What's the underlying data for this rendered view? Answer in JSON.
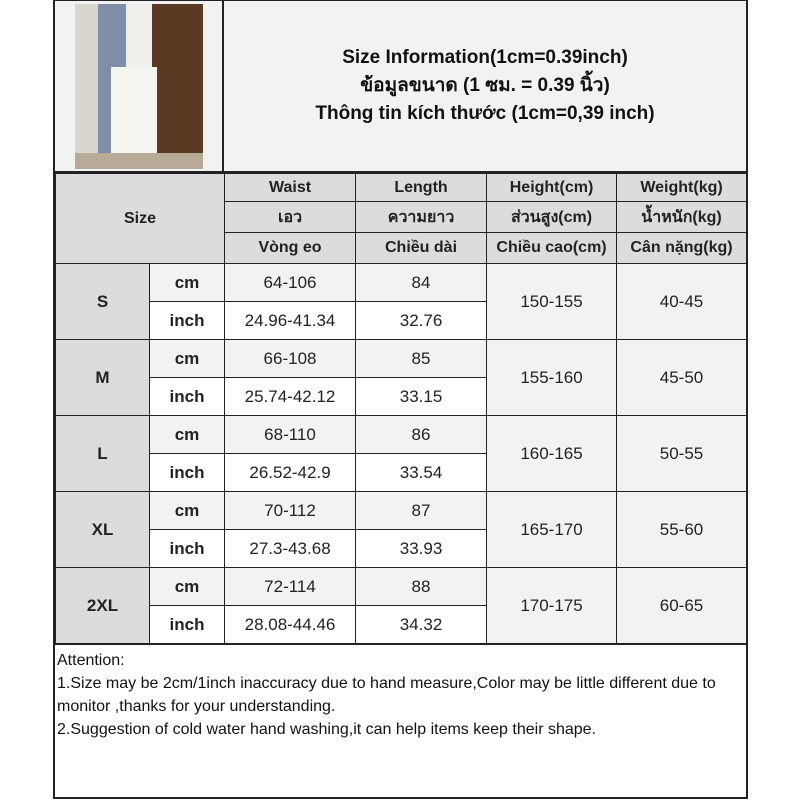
{
  "title": {
    "line1": "Size Information(1cm=0.39inch)",
    "line2": "ข้อมูลขนาด (1 ซม. = 0.39 นิ้ว)",
    "line3": "Thông tin kích thước (1cm=0,39 inch)"
  },
  "header": {
    "size_label": "Size",
    "columns": [
      {
        "en": "Waist",
        "th": "เอว",
        "vi": "Vòng eo"
      },
      {
        "en": "Length",
        "th": "ความยาว",
        "vi": "Chiều dài"
      },
      {
        "en": "Height(cm)",
        "th": "ส่วนสูง(cm)",
        "vi": "Chiều cao(cm)"
      },
      {
        "en": "Weight(kg)",
        "th": "น้ำหนัก(kg)",
        "vi": "Cân nặng(kg)"
      }
    ]
  },
  "units": {
    "cm": "cm",
    "inch": "inch"
  },
  "rows": [
    {
      "size": "S",
      "waist_cm": "64-106",
      "length_cm": "84",
      "waist_in": "24.96-41.34",
      "length_in": "32.76",
      "height": "150-155",
      "weight": "40-45"
    },
    {
      "size": "M",
      "waist_cm": "66-108",
      "length_cm": "85",
      "waist_in": "25.74-42.12",
      "length_in": "33.15",
      "height": "155-160",
      "weight": "45-50"
    },
    {
      "size": "L",
      "waist_cm": "68-110",
      "length_cm": "86",
      "waist_in": "26.52-42.9",
      "length_in": "33.54",
      "height": "160-165",
      "weight": "50-55"
    },
    {
      "size": "XL",
      "waist_cm": "70-112",
      "length_cm": "87",
      "waist_in": "27.3-43.68",
      "length_in": "33.93",
      "height": "165-170",
      "weight": "55-60"
    },
    {
      "size": "2XL",
      "waist_cm": "72-114",
      "length_cm": "88",
      "waist_in": "28.08-44.46",
      "length_in": "34.32",
      "height": "170-175",
      "weight": "60-65"
    }
  ],
  "notes": {
    "heading": "Attention:",
    "items": [
      "1.Size may be 2cm/1inch inaccuracy due to hand measure,Color may be little different due to monitor ,thanks for your understanding.",
      "2.Suggestion of cold water hand washing,it can help items keep their shape."
    ]
  }
}
